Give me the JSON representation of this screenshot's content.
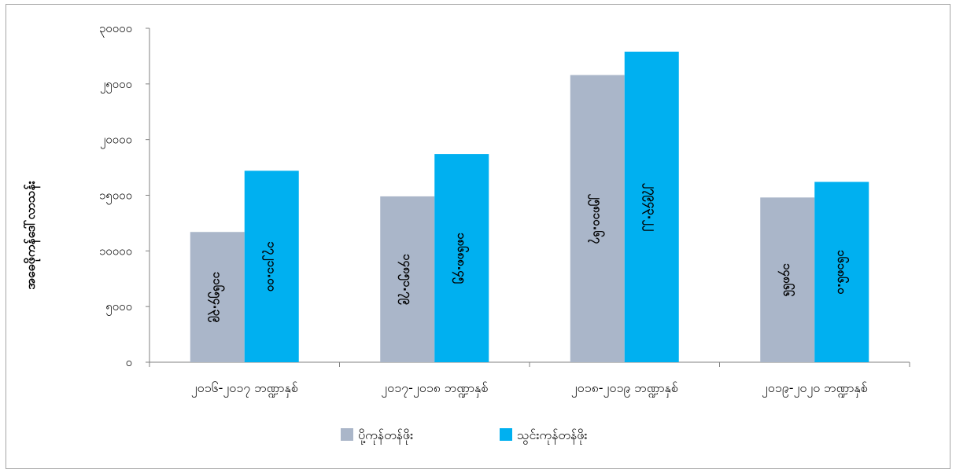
{
  "chart_data": {
    "type": "bar",
    "title": "",
    "xlabel": "",
    "ylabel": "အဓေဖိုကန်ဒေါ်လာသန်း",
    "ylim": [
      0,
      30000
    ],
    "yticks": [
      0,
      5000,
      10000,
      15000,
      20000,
      25000,
      30000
    ],
    "ytick_labels": [
      "၀",
      "၅၀၀၀",
      "၁၀၀၀၀",
      "၁၅၀၀၀",
      "၂၀၀၀၀",
      "၂၅၀၀၀",
      "၃၀၀၀၀"
    ],
    "categories": [
      "၂၀၁၆-၂၀၁၇ ဘဏ္ဍာနှစ်",
      "၂၀၁၇-၂၀၁၈ ဘဏ္ဍာနှစ်",
      "၂၀၁၈-၂၀၁၉ ဘဏ္ဍာနှစ်",
      "၂၀၁၉-၂၀၂၀ ဘဏ္ဍာနှစ်"
    ],
    "series": [
      {
        "name": "ပို့ကုန်တန်ဖိုး",
        "color": "#aab6c9",
        "values": [
          11700,
          14900,
          25800,
          14800
        ],
        "labels": [
          "၁၁၆၅၄.၃၉",
          "၁၄၈၅၁.၇၉",
          "၂၅၈၁၀.၆၇",
          "၁၄၈၆၆"
        ]
      },
      {
        "name": "သွင်းကုန်တန်ဖိုး",
        "color": "#00b0f0",
        "values": [
          17200,
          18700,
          27900,
          16200
        ],
        "labels": [
          "၁၇၂၁၁.၀၀",
          "၁၈၆၈၈.၄၅",
          "၂၇၉၄၃.၂၂",
          "၁၆၁၈၆.၀"
        ]
      }
    ],
    "legend_position": "bottom",
    "grid": false
  }
}
